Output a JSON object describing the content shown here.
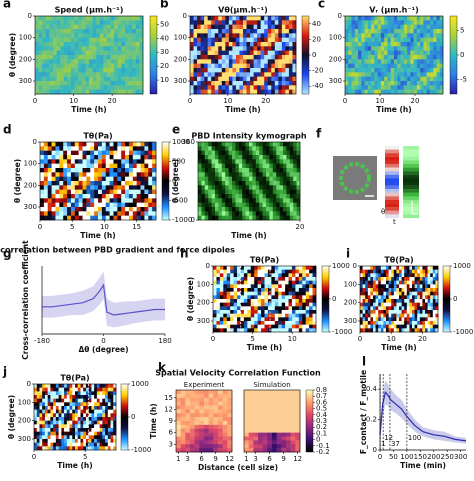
{
  "chart_data": [
    {
      "type": "heatmap",
      "panel_label": "a",
      "title": "Speed (μm.h⁻¹)",
      "xlabel": "Time (h)",
      "ylabel": "θ (degree)",
      "xlim": [
        0,
        28
      ],
      "xticks": [
        0,
        10,
        20
      ],
      "ylim": [
        0,
        360
      ],
      "yticks": [
        0,
        100,
        200,
        300
      ],
      "y_inverted": true,
      "colormap": [
        "#2b1fa8",
        "#2f7fe0",
        "#33b8c0",
        "#a8d040",
        "#f8e820"
      ],
      "clim": [
        0,
        56
      ],
      "cticks": [
        10,
        20,
        30,
        40,
        50
      ]
    },
    {
      "type": "heatmap",
      "panel_label": "b",
      "title": "Vθ(μm.h⁻¹)",
      "xlabel": "Time (h)",
      "xlim": [
        0,
        28
      ],
      "xticks": [
        0,
        10,
        20
      ],
      "ylim": [
        0,
        360
      ],
      "yticks": [
        0,
        100,
        200,
        300
      ],
      "y_inverted": true,
      "colormap": [
        "#b0e8ff",
        "#1e48f0",
        "#10102a",
        "#d81e10",
        "#ffe070"
      ],
      "clim": [
        -50,
        50
      ],
      "cticks": [
        -40,
        -20,
        0,
        20,
        40
      ]
    },
    {
      "type": "heatmap",
      "panel_label": "c",
      "title": "Vᵣ (μm.h⁻¹)",
      "xlabel": "Time (h)",
      "xlim": [
        0,
        28
      ],
      "xticks": [
        0,
        10,
        20
      ],
      "ylim": [
        0,
        360
      ],
      "yticks": [
        0,
        100,
        200,
        300
      ],
      "y_inverted": true,
      "colormap": [
        "#2b1fa8",
        "#2f7fe0",
        "#33b8c0",
        "#a8d040",
        "#f8e820"
      ],
      "clim": [
        -8,
        8
      ],
      "cticks": [
        -5,
        0,
        5
      ]
    },
    {
      "type": "heatmap",
      "panel_label": "d",
      "title": "Tθ(Pa)",
      "xlabel": "Time (h)",
      "ylabel": "θ (degree)",
      "xlim": [
        0,
        18
      ],
      "xticks": [
        0,
        5,
        10,
        15
      ],
      "ylim": [
        0,
        360
      ],
      "yticks": [
        0,
        100,
        200,
        300
      ],
      "y_inverted": true,
      "colormap": [
        "#c8ffff",
        "#1f8fff",
        "#101040",
        "#000000",
        "#d01010",
        "#ffd000",
        "#ffffff"
      ],
      "clim": [
        -1000,
        1000
      ],
      "cticks": [
        -1000,
        -500,
        0,
        500,
        1000
      ]
    },
    {
      "type": "kymograph",
      "panel_label": "e",
      "title": "PBD Intensity kymograph",
      "xlabel": "Time (h)",
      "ylabel": "θ (degree)",
      "xlim": [
        0,
        20
      ],
      "xticks": [
        20
      ],
      "ylim": [
        0,
        360
      ],
      "yticks": [
        0,
        360
      ],
      "colormap": [
        "#000000",
        "#0b3d0b",
        "#2e9a2e",
        "#9cff9c"
      ]
    },
    {
      "type": "image",
      "panel_label": "f",
      "xlabel": "t",
      "ylabel": "θ"
    },
    {
      "type": "line",
      "panel_label": "g",
      "title": "Cross-correlation between PBD gradient and force dipoles",
      "xlabel": "Δθ (degree)",
      "ylabel": "Cross-correlation coefficient",
      "xlim": [
        -180,
        180
      ],
      "xticks": [
        -180,
        0,
        180
      ],
      "ylim": [
        -0.1,
        0.15
      ],
      "series": [
        {
          "color": "#5a52c8",
          "x": [
            -180,
            -150,
            -120,
            -90,
            -60,
            -30,
            -10,
            0,
            10,
            30,
            60,
            90,
            120,
            150,
            180
          ],
          "values": [
            0.0,
            0.0,
            0.005,
            0.01,
            0.015,
            0.03,
            0.06,
            0.08,
            -0.02,
            -0.03,
            -0.025,
            -0.02,
            -0.015,
            -0.01,
            -0.01
          ],
          "error": [
            0.04,
            0.04,
            0.04,
            0.04,
            0.045,
            0.045,
            0.05,
            0.05,
            0.05,
            0.045,
            0.045,
            0.04,
            0.04,
            0.04,
            0.04
          ]
        }
      ]
    },
    {
      "type": "heatmap",
      "panel_label": "h",
      "title": "Tθ(Pa)",
      "xlabel": "Time (h)",
      "ylabel": "θ (degree)",
      "xlim": [
        0,
        13
      ],
      "xticks": [
        0,
        5,
        10
      ],
      "ylim": [
        0,
        360
      ],
      "yticks": [
        0,
        100,
        200,
        300
      ],
      "y_inverted": true,
      "vlines": [
        3.5,
        7.2
      ],
      "vline_color": "#ffffff",
      "colormap": [
        "#c8ffff",
        "#1f8fff",
        "#101040",
        "#000000",
        "#d01010",
        "#ffd000",
        "#ffffff"
      ],
      "clim": [
        -1000,
        1000
      ],
      "cticks": [
        -1000,
        0,
        1000
      ]
    },
    {
      "type": "heatmap",
      "panel_label": "i",
      "title": "Tθ(Pa)",
      "xlabel": "Time (h)",
      "xlim": [
        0,
        25
      ],
      "xticks": [
        0,
        10,
        20
      ],
      "ylim": [
        0,
        360
      ],
      "yticks": [
        0,
        100,
        200,
        300
      ],
      "y_inverted": true,
      "colormap": [
        "#c8ffff",
        "#1f8fff",
        "#101040",
        "#000000",
        "#d01010",
        "#ffd000",
        "#ffffff"
      ],
      "clim": [
        -1000,
        1000
      ],
      "cticks": [
        -1000,
        0,
        1000
      ]
    },
    {
      "type": "heatmap",
      "panel_label": "j",
      "title": "Tθ(Pa)",
      "xlabel": "Time (h)",
      "ylabel": "θ (degree)",
      "xlim": [
        0,
        8
      ],
      "xticks": [
        0,
        5
      ],
      "ylim": [
        0,
        360
      ],
      "yticks": [
        0,
        100,
        200,
        300
      ],
      "y_inverted": true,
      "vlines": [
        5.3
      ],
      "vline_color": "#ffffff",
      "colormap": [
        "#c8ffff",
        "#1f8fff",
        "#101040",
        "#000000",
        "#d01010",
        "#ffd000",
        "#ffffff"
      ],
      "clim": [
        -1000,
        1000
      ],
      "cticks": [
        -1000,
        0,
        1000
      ]
    },
    {
      "type": "heatmap-pair",
      "panel_label": "k",
      "title": "Spatial Velocity Correlation Function",
      "subtitles": [
        "Experiment",
        "Simulation"
      ],
      "xlabel": "Distance (cell size)",
      "ylabel": "Time (h)",
      "xlim": [
        0.5,
        12.5
      ],
      "xticks": [
        1,
        3,
        6,
        9,
        12
      ],
      "ylim": [
        1,
        17
      ],
      "yticks": [
        3,
        6,
        9,
        12,
        15
      ],
      "colormap": [
        "#000004",
        "#3b0f70",
        "#8c2981",
        "#de4968",
        "#fe9f6d",
        "#fcfdbf"
      ],
      "clim": [
        -0.2,
        0.8
      ],
      "cticks": [
        -0.2,
        -0.1,
        0,
        0.1,
        0.2,
        0.3,
        0.4,
        0.5,
        0.6,
        0.7,
        0.8
      ]
    },
    {
      "type": "line",
      "panel_label": "l",
      "xlabel": "Time (min)",
      "ylabel": "F_contact / F_motile",
      "xlim": [
        0,
        320
      ],
      "xticks": [
        0,
        50,
        100,
        150,
        200,
        250,
        300
      ],
      "ylim": [
        0,
        0.5
      ],
      "yticks": [
        0,
        0.2,
        0.4
      ],
      "vline_color": "#333333",
      "vlines": [
        {
          "value": 1,
          "label": "1"
        },
        {
          "value": 12,
          "label": "12"
        },
        {
          "value": 37,
          "label": "37"
        },
        {
          "value": 100,
          "label": "100"
        }
      ],
      "series": [
        {
          "color": "#2a2ab0",
          "x": [
            0,
            10,
            20,
            30,
            40,
            60,
            80,
            100,
            130,
            160,
            200,
            240,
            280,
            320
          ],
          "values": [
            0.1,
            0.3,
            0.38,
            0.36,
            0.33,
            0.3,
            0.27,
            0.22,
            0.16,
            0.12,
            0.1,
            0.09,
            0.07,
            0.06
          ],
          "error": [
            0.05,
            0.08,
            0.08,
            0.07,
            0.07,
            0.06,
            0.06,
            0.05,
            0.04,
            0.03,
            0.03,
            0.03,
            0.02,
            0.02
          ]
        }
      ]
    }
  ]
}
